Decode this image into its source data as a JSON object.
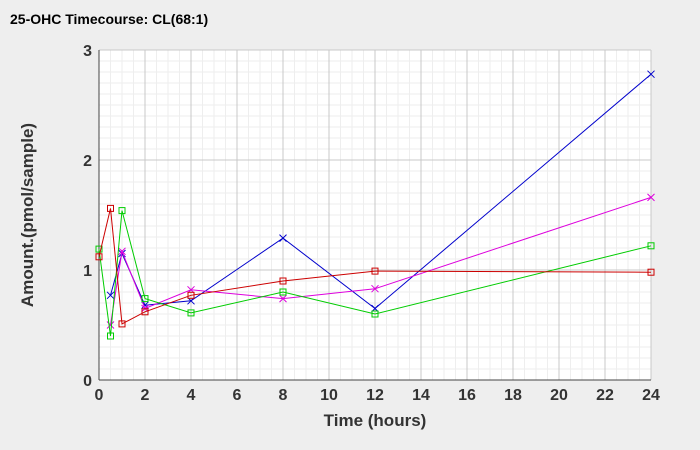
{
  "chart_data": {
    "type": "line",
    "title": "25-OHC Timecourse: CL(68:1)",
    "xlabel": "Time (hours)",
    "ylabel": "Amount.(pmol/sample)",
    "xlim": [
      0,
      24
    ],
    "ylim": [
      0,
      3
    ],
    "x_ticks": [
      0,
      2,
      4,
      6,
      8,
      10,
      12,
      14,
      16,
      18,
      20,
      22,
      24
    ],
    "y_ticks": [
      0,
      1,
      2,
      3
    ],
    "grid": true,
    "legend": "none",
    "series": [
      {
        "color": "#0000cc",
        "marker": "x",
        "points": [
          [
            0.5,
            0.77
          ],
          [
            1,
            1.15
          ],
          [
            2,
            0.68
          ],
          [
            4,
            0.72
          ],
          [
            8,
            1.29
          ],
          [
            12,
            0.65
          ],
          [
            24,
            2.78
          ]
        ]
      },
      {
        "color": "#dd00dd",
        "marker": "x",
        "points": [
          [
            0.5,
            0.5
          ],
          [
            1,
            1.17
          ],
          [
            2,
            0.65
          ],
          [
            4,
            0.82
          ],
          [
            8,
            0.74
          ],
          [
            12,
            0.83
          ],
          [
            24,
            1.66
          ]
        ]
      },
      {
        "color": "#00cc00",
        "marker": "square",
        "points": [
          [
            0,
            1.19
          ],
          [
            0.5,
            0.4
          ],
          [
            1,
            1.54
          ],
          [
            2,
            0.74
          ],
          [
            4,
            0.61
          ],
          [
            8,
            0.8
          ],
          [
            12,
            0.6
          ],
          [
            24,
            1.22
          ]
        ]
      },
      {
        "color": "#cc0000",
        "marker": "square",
        "points": [
          [
            0,
            1.12
          ],
          [
            0.5,
            1.56
          ],
          [
            1,
            0.51
          ],
          [
            2,
            0.62
          ],
          [
            4,
            0.77
          ],
          [
            8,
            0.9
          ],
          [
            12,
            0.99
          ],
          [
            24,
            0.98
          ]
        ]
      }
    ]
  }
}
